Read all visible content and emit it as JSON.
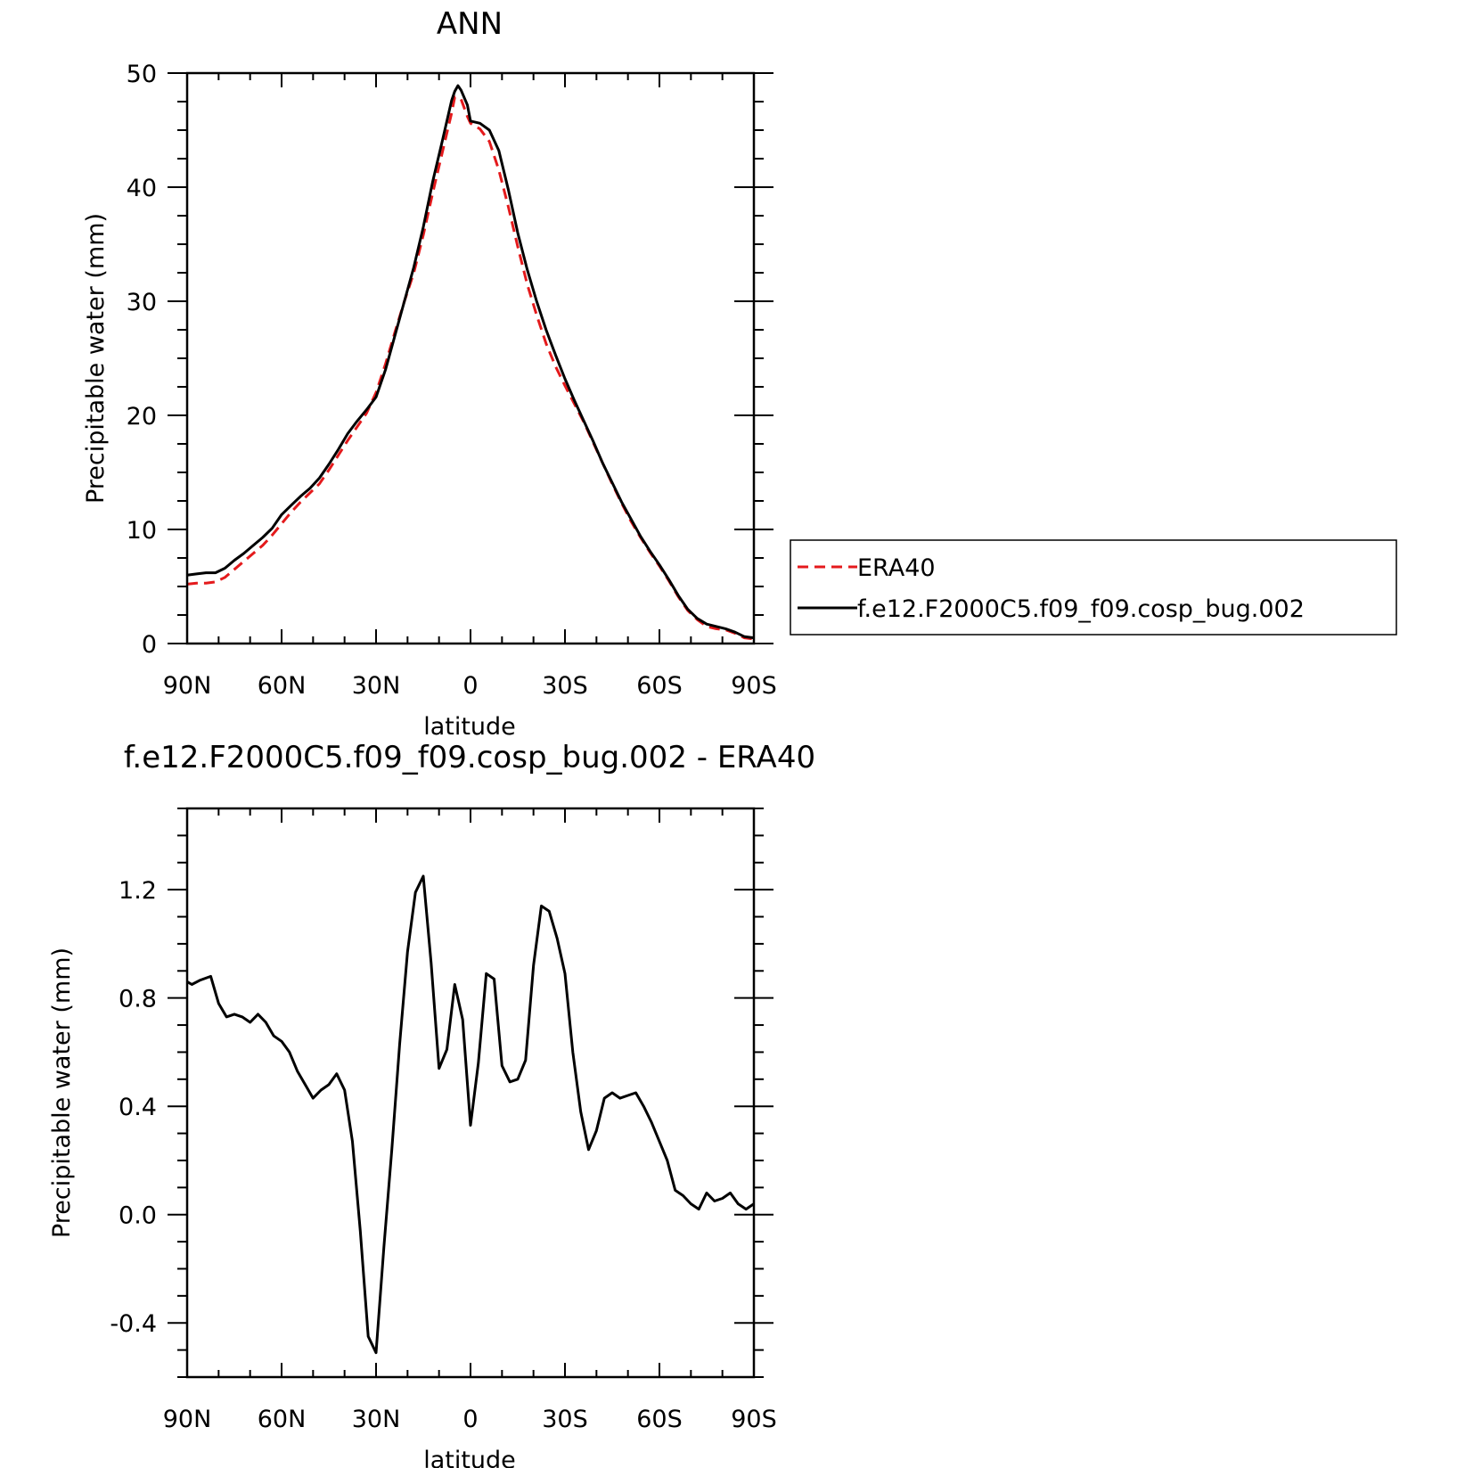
{
  "chart_data": [
    {
      "type": "line",
      "title": "ANN",
      "xlabel": "latitude",
      "ylabel": "Precipitable water (mm)",
      "xlim": [
        90,
        -90
      ],
      "ylim": [
        0,
        50
      ],
      "x_ticks": [
        90,
        60,
        30,
        0,
        -30,
        -60,
        -90
      ],
      "x_tick_labels": [
        "90N",
        "60N",
        "30N",
        "0",
        "30S",
        "60S",
        "90S"
      ],
      "y_ticks": [
        0,
        10,
        20,
        30,
        40,
        50
      ],
      "y_tick_labels": [
        "0",
        "10",
        "20",
        "30",
        "40",
        "50"
      ],
      "legend_placement": "right",
      "series": [
        {
          "name": "ERA40",
          "color": "#e41a1c",
          "dash": "dashed",
          "points": [
            [
              90,
              5.2
            ],
            [
              87,
              5.3
            ],
            [
              84,
              5.3
            ],
            [
              81,
              5.4
            ],
            [
              78,
              5.8
            ],
            [
              75,
              6.5
            ],
            [
              72,
              7.2
            ],
            [
              69,
              7.9
            ],
            [
              66,
              8.6
            ],
            [
              63,
              9.5
            ],
            [
              60,
              10.5
            ],
            [
              57,
              11.5
            ],
            [
              54,
              12.4
            ],
            [
              51,
              13.2
            ],
            [
              48,
              14.0
            ],
            [
              45,
              15.2
            ],
            [
              42,
              16.5
            ],
            [
              39,
              17.8
            ],
            [
              36,
              19.0
            ],
            [
              33,
              20.2
            ],
            [
              30,
              22.0
            ],
            [
              27,
              24.5
            ],
            [
              24,
              27.3
            ],
            [
              21,
              30.0
            ],
            [
              18,
              32.5
            ],
            [
              15,
              35.8
            ],
            [
              12,
              39.5
            ],
            [
              9,
              43.0
            ],
            [
              6,
              46.5
            ],
            [
              5,
              47.9
            ],
            [
              3,
              47.7
            ],
            [
              1,
              46.2
            ],
            [
              0,
              45.6
            ],
            [
              -3,
              45.1
            ],
            [
              -6,
              44.0
            ],
            [
              -9,
              41.5
            ],
            [
              -12,
              38.3
            ],
            [
              -15,
              34.8
            ],
            [
              -18,
              31.5
            ],
            [
              -21,
              28.8
            ],
            [
              -24,
              26.3
            ],
            [
              -27,
              24.3
            ],
            [
              -30,
              22.6
            ],
            [
              -33,
              21.0
            ],
            [
              -36,
              19.4
            ],
            [
              -39,
              17.6
            ],
            [
              -42,
              15.8
            ],
            [
              -45,
              14.0
            ],
            [
              -48,
              12.3
            ],
            [
              -51,
              10.7
            ],
            [
              -54,
              9.3
            ],
            [
              -57,
              8.0
            ],
            [
              -60,
              6.8
            ],
            [
              -63,
              5.5
            ],
            [
              -66,
              4.1
            ],
            [
              -69,
              2.9
            ],
            [
              -72,
              2.1
            ],
            [
              -75,
              1.5
            ],
            [
              -78,
              1.3
            ],
            [
              -81,
              1.2
            ],
            [
              -84,
              0.9
            ],
            [
              -87,
              0.5
            ],
            [
              -90,
              0.4
            ]
          ]
        },
        {
          "name": "f.e12.F2000C5.f09_f09.cosp_bug.002",
          "color": "#000000",
          "dash": "solid",
          "points": [
            [
              90,
              6.0
            ],
            [
              87,
              6.1
            ],
            [
              84,
              6.2
            ],
            [
              81,
              6.2
            ],
            [
              78,
              6.6
            ],
            [
              75,
              7.3
            ],
            [
              72,
              7.9
            ],
            [
              69,
              8.6
            ],
            [
              66,
              9.3
            ],
            [
              63,
              10.1
            ],
            [
              60,
              11.3
            ],
            [
              57,
              12.1
            ],
            [
              54,
              12.9
            ],
            [
              51,
              13.6
            ],
            [
              48,
              14.5
            ],
            [
              45,
              15.7
            ],
            [
              42,
              17.0
            ],
            [
              39,
              18.4
            ],
            [
              36,
              19.5
            ],
            [
              33,
              20.5
            ],
            [
              30,
              21.6
            ],
            [
              27,
              24.0
            ],
            [
              24,
              27.0
            ],
            [
              21,
              30.0
            ],
            [
              18,
              33.0
            ],
            [
              15,
              36.5
            ],
            [
              12,
              40.5
            ],
            [
              9,
              44.0
            ],
            [
              6,
              47.6
            ],
            [
              5,
              48.4
            ],
            [
              4,
              48.9
            ],
            [
              3,
              48.5
            ],
            [
              1,
              47.2
            ],
            [
              0,
              45.8
            ],
            [
              -3,
              45.6
            ],
            [
              -6,
              45.0
            ],
            [
              -9,
              43.2
            ],
            [
              -12,
              39.8
            ],
            [
              -15,
              36.0
            ],
            [
              -18,
              32.8
            ],
            [
              -21,
              30.0
            ],
            [
              -24,
              27.5
            ],
            [
              -27,
              25.3
            ],
            [
              -30,
              23.2
            ],
            [
              -33,
              21.3
            ],
            [
              -36,
              19.5
            ],
            [
              -39,
              17.7
            ],
            [
              -42,
              15.8
            ],
            [
              -45,
              14.1
            ],
            [
              -48,
              12.4
            ],
            [
              -51,
              10.9
            ],
            [
              -54,
              9.4
            ],
            [
              -57,
              8.1
            ],
            [
              -60,
              6.9
            ],
            [
              -63,
              5.6
            ],
            [
              -66,
              4.2
            ],
            [
              -69,
              3.0
            ],
            [
              -72,
              2.2
            ],
            [
              -75,
              1.7
            ],
            [
              -78,
              1.5
            ],
            [
              -81,
              1.3
            ],
            [
              -84,
              1.0
            ],
            [
              -87,
              0.6
            ],
            [
              -90,
              0.5
            ]
          ]
        }
      ]
    },
    {
      "type": "line",
      "title": "f.e12.F2000C5.f09_f09.cosp_bug.002 - ERA40",
      "xlabel": "latitude",
      "ylabel": "Precipitable water (mm)",
      "xlim": [
        90,
        -90
      ],
      "ylim": [
        -0.6,
        1.5
      ],
      "x_ticks": [
        90,
        60,
        30,
        0,
        -30,
        -60,
        -90
      ],
      "x_tick_labels": [
        "90N",
        "60N",
        "30N",
        "0",
        "30S",
        "60S",
        "90S"
      ],
      "y_ticks": [
        -0.4,
        0.0,
        0.4,
        0.8,
        1.2
      ],
      "y_tick_labels": [
        "-0.4",
        "0.0",
        "0.4",
        "0.8",
        "1.2"
      ],
      "series": [
        {
          "color": "#000000",
          "dash": "solid",
          "points": [
            [
              90,
              0.86
            ],
            [
              88.5,
              0.85
            ],
            [
              86,
              0.865
            ],
            [
              82.5,
              0.88
            ],
            [
              80,
              0.78
            ],
            [
              77.5,
              0.73
            ],
            [
              75,
              0.74
            ],
            [
              72.5,
              0.73
            ],
            [
              70,
              0.71
            ],
            [
              67.5,
              0.74
            ],
            [
              65,
              0.71
            ],
            [
              62.5,
              0.66
            ],
            [
              60,
              0.64
            ],
            [
              57.5,
              0.6
            ],
            [
              55,
              0.53
            ],
            [
              52.5,
              0.48
            ],
            [
              50,
              0.43
            ],
            [
              47.5,
              0.46
            ],
            [
              45,
              0.48
            ],
            [
              42.5,
              0.52
            ],
            [
              40,
              0.46
            ],
            [
              37.5,
              0.27
            ],
            [
              35,
              -0.06
            ],
            [
              32.5,
              -0.45
            ],
            [
              30,
              -0.51
            ],
            [
              27.5,
              -0.12
            ],
            [
              25,
              0.24
            ],
            [
              22.5,
              0.63
            ],
            [
              20,
              0.97
            ],
            [
              17.5,
              1.19
            ],
            [
              15,
              1.25
            ],
            [
              12.5,
              0.93
            ],
            [
              10,
              0.54
            ],
            [
              7.5,
              0.61
            ],
            [
              5,
              0.85
            ],
            [
              2.5,
              0.72
            ],
            [
              0,
              0.33
            ],
            [
              -2.5,
              0.56
            ],
            [
              -5,
              0.89
            ],
            [
              -7.5,
              0.87
            ],
            [
              -10,
              0.55
            ],
            [
              -12.5,
              0.49
            ],
            [
              -15,
              0.5
            ],
            [
              -17.5,
              0.57
            ],
            [
              -20,
              0.92
            ],
            [
              -22.5,
              1.14
            ],
            [
              -25,
              1.12
            ],
            [
              -27.5,
              1.02
            ],
            [
              -30,
              0.89
            ],
            [
              -32.5,
              0.6
            ],
            [
              -35,
              0.38
            ],
            [
              -37.5,
              0.24
            ],
            [
              -40,
              0.31
            ],
            [
              -42.5,
              0.43
            ],
            [
              -45,
              0.45
            ],
            [
              -47.5,
              0.43
            ],
            [
              -50,
              0.44
            ],
            [
              -52.5,
              0.45
            ],
            [
              -55,
              0.4
            ],
            [
              -57.5,
              0.34
            ],
            [
              -60,
              0.27
            ],
            [
              -62.5,
              0.2
            ],
            [
              -65,
              0.09
            ],
            [
              -67.5,
              0.07
            ],
            [
              -70,
              0.04
            ],
            [
              -72.5,
              0.02
            ],
            [
              -75,
              0.08
            ],
            [
              -77.5,
              0.05
            ],
            [
              -80,
              0.06
            ],
            [
              -82.5,
              0.08
            ],
            [
              -85,
              0.04
            ],
            [
              -87.5,
              0.02
            ],
            [
              -90,
              0.04
            ]
          ]
        }
      ]
    }
  ]
}
